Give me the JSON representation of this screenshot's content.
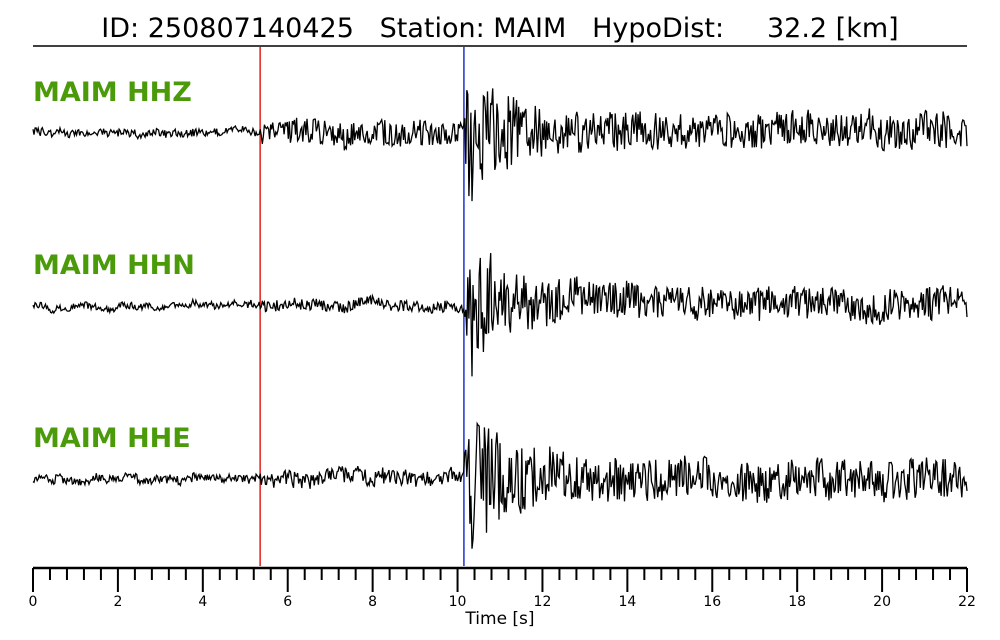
{
  "header": {
    "id_label": "ID: 250807140425",
    "station_label": "Station: MAIM",
    "dist_label": "HypoDist:",
    "dist_value": "32.2 [km]"
  },
  "chart_data": {
    "type": "line",
    "xlabel": "Time [s]",
    "xlim": [
      0,
      22
    ],
    "x_ticks": [
      "0",
      "2",
      "4",
      "6",
      "8",
      "10",
      "12",
      "14",
      "16",
      "18",
      "20",
      "22"
    ],
    "minor_tick_step": 0.4,
    "picks": [
      {
        "time": 5.35,
        "color": "#e0201a"
      },
      {
        "time": 10.15,
        "color": "#2030d0"
      }
    ],
    "series": [
      {
        "name": "MAIM HHZ",
        "label_color": "#4a9a0a",
        "trace_color": "#000000",
        "noise_pre": 0.05,
        "noise_mid": 0.16,
        "burst_peak": 1.0,
        "coda_level": 0.22,
        "arrival_p": 5.35,
        "arrival_s": 10.15
      },
      {
        "name": "MAIM HHN",
        "label_color": "#4a9a0a",
        "trace_color": "#000000",
        "noise_pre": 0.04,
        "noise_mid": 0.07,
        "burst_peak": 1.0,
        "coda_level": 0.2,
        "arrival_p": 5.35,
        "arrival_s": 10.15
      },
      {
        "name": "MAIM HHE",
        "label_color": "#4a9a0a",
        "trace_color": "#000000",
        "noise_pre": 0.05,
        "noise_mid": 0.1,
        "burst_peak": 1.0,
        "coda_level": 0.25,
        "arrival_p": 5.35,
        "arrival_s": 10.15
      }
    ]
  }
}
